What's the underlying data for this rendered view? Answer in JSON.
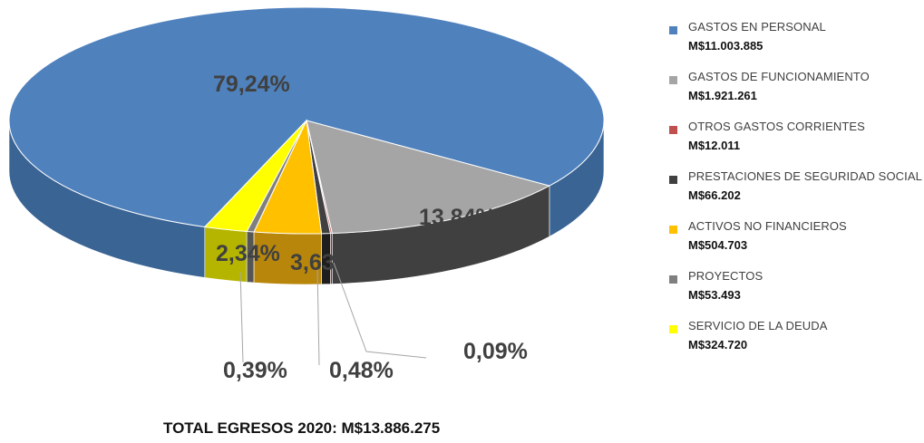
{
  "chart_data": {
    "type": "pie",
    "style": "3d-exploded-pie",
    "slices": [
      {
        "name": "GASTOS EN PERSONAL",
        "amount": "M$11.003.885",
        "value": 79.24,
        "label": "79,24%",
        "color": "#4F81BD",
        "side_color": "#3A6494"
      },
      {
        "name": "GASTOS DE FUNCIONAMIENTO",
        "amount": "M$1.921.261",
        "value": 13.84,
        "label": "13,84%",
        "color": "#A5A5A5",
        "side_color": "#404040"
      },
      {
        "name": "OTROS GASTOS CORRIENTES",
        "amount": "M$12.011",
        "value": 0.09,
        "label": "0,09%",
        "color": "#C0504D",
        "side_color": "#8B2E2B"
      },
      {
        "name": "PRESTACIONES DE SEGURIDAD SOCIAL",
        "amount": "M$66.202",
        "value": 0.48,
        "label": "0,48%",
        "color": "#404040",
        "side_color": "#1E1E1E"
      },
      {
        "name": "ACTIVOS NO FINANCIEROS",
        "amount": "M$504.703",
        "value": 3.63,
        "label": "3,63%",
        "color": "#FFC000",
        "side_color": "#B8860B"
      },
      {
        "name": "PROYECTOS",
        "amount": "M$53.493",
        "value": 0.39,
        "label": "0,39%",
        "color": "#7F7F7F",
        "side_color": "#555555"
      },
      {
        "name": "SERVICIO DE LA DEUDA",
        "amount": "M$324.720",
        "value": 2.34,
        "label": "2,34%",
        "color": "#FFFF00",
        "side_color": "#B5B500"
      }
    ],
    "legend_position": "right",
    "total_label": "TOTAL EGRESOS 2020: M$13.886.275"
  }
}
